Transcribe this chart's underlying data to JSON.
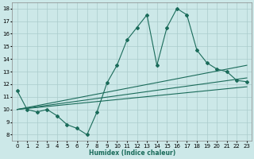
{
  "xlabel": "Humidex (Indice chaleur)",
  "xlim": [
    -0.5,
    23.5
  ],
  "ylim": [
    7.5,
    18.5
  ],
  "xticks": [
    0,
    1,
    2,
    3,
    4,
    5,
    6,
    7,
    8,
    9,
    10,
    11,
    12,
    13,
    14,
    15,
    16,
    17,
    18,
    19,
    20,
    21,
    22,
    23
  ],
  "yticks": [
    8,
    9,
    10,
    11,
    12,
    13,
    14,
    15,
    16,
    17,
    18
  ],
  "bg_color": "#cce8e8",
  "line_color": "#1a6b5a",
  "grid_color": "#aacccc",
  "jagged": {
    "x": [
      0,
      1,
      2,
      3,
      4,
      5,
      6,
      7,
      8,
      9,
      10,
      11,
      12,
      13,
      14,
      15,
      16,
      17,
      18,
      19,
      20,
      21,
      22,
      23
    ],
    "y": [
      11.5,
      10.0,
      9.8,
      10.0,
      9.5,
      8.8,
      8.5,
      8.0,
      9.8,
      12.1,
      13.5,
      15.5,
      16.5,
      17.5,
      13.5,
      16.5,
      18.0,
      17.5,
      14.7,
      13.7,
      13.2,
      13.0,
      12.3,
      12.2
    ]
  },
  "smooth_lines": [
    {
      "x": [
        0,
        23
      ],
      "y": [
        10.0,
        13.5
      ]
    },
    {
      "x": [
        0,
        23
      ],
      "y": [
        10.0,
        12.5
      ]
    },
    {
      "x": [
        0,
        23
      ],
      "y": [
        10.0,
        11.8
      ]
    }
  ]
}
